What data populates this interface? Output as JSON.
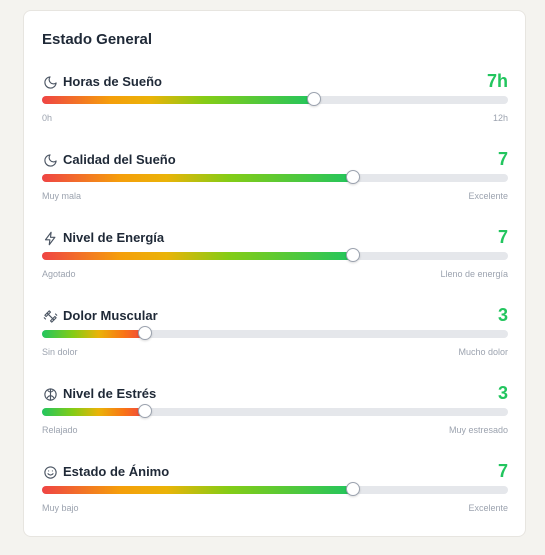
{
  "card": {
    "title": "Estado General"
  },
  "colors": {
    "value": "#22c55e",
    "track": "#e5e7eb"
  },
  "metrics": [
    {
      "id": "sleep-hours",
      "icon": "moon-icon",
      "label": "Horas de Sueño",
      "value": "7h",
      "level": 0.583,
      "gradient": "good",
      "min_label": "0h",
      "max_label": "12h"
    },
    {
      "id": "sleep-quality",
      "icon": "moon-icon",
      "label": "Calidad del Sueño",
      "value": "7",
      "level": 0.667,
      "gradient": "good",
      "min_label": "Muy mala",
      "max_label": "Excelente"
    },
    {
      "id": "energy-level",
      "icon": "lightning-icon",
      "label": "Nivel de Energía",
      "value": "7",
      "level": 0.667,
      "gradient": "good",
      "min_label": "Agotado",
      "max_label": "Lleno de energía"
    },
    {
      "id": "muscle-pain",
      "icon": "dumbbell-icon",
      "label": "Dolor Muscular",
      "value": "3",
      "level": 0.222,
      "gradient": "bad",
      "min_label": "Sin dolor",
      "max_label": "Mucho dolor"
    },
    {
      "id": "stress-level",
      "icon": "brain-icon",
      "label": "Nivel de Estrés",
      "value": "3",
      "level": 0.222,
      "gradient": "bad",
      "min_label": "Relajado",
      "max_label": "Muy estresado"
    },
    {
      "id": "mood",
      "icon": "smile-icon",
      "label": "Estado de Ánimo",
      "value": "7",
      "level": 0.667,
      "gradient": "good",
      "min_label": "Muy bajo",
      "max_label": "Excelente"
    }
  ]
}
